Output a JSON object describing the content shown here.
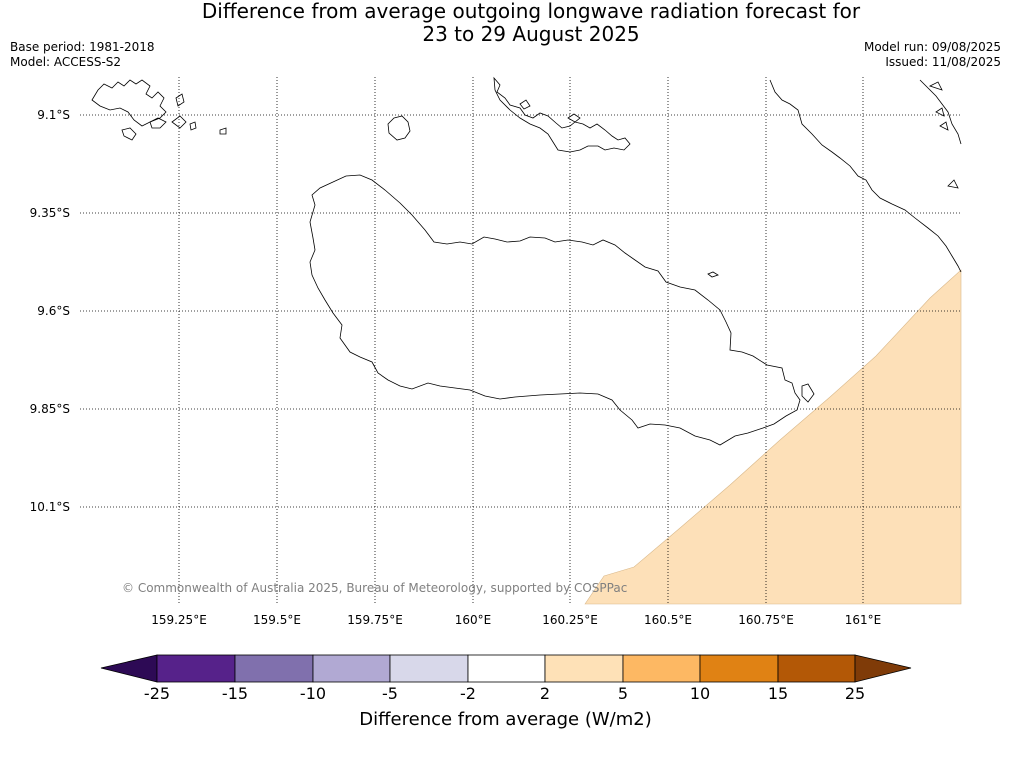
{
  "title": {
    "line1": "Difference from average outgoing longwave radiation forecast for",
    "line2": "23 to 29 August 2025"
  },
  "meta_left": {
    "base_period": "Base period: 1981-2018",
    "model": "Model: ACCESS-S2"
  },
  "meta_right": {
    "model_run": "Model run: 09/08/2025",
    "issued": "Issued: 11/08/2025"
  },
  "map": {
    "lat_labels": [
      "9.1°S",
      "9.35°S",
      "9.6°S",
      "9.85°S",
      "10.1°S"
    ],
    "lon_labels": [
      "159.25°E",
      "159.5°E",
      "159.75°E",
      "160°E",
      "160.25°E",
      "160.5°E",
      "160.75°E",
      "161°E"
    ],
    "anomaly_fill_color": "#fde0b8",
    "copyright": "© Commonwealth of Australia 2025, Bureau of Meteorology, supported by COSPPac"
  },
  "colorbar": {
    "ticks": [
      "-25",
      "-15",
      "-10",
      "-5",
      "-2",
      "2",
      "5",
      "10",
      "15",
      "25"
    ],
    "colors": [
      "#2d0a55",
      "#56228a",
      "#8070ad",
      "#b1a9d3",
      "#d8d8ea",
      "#ffffff",
      "#fee1b7",
      "#fdb863",
      "#e08214",
      "#b35806",
      "#7f3b08"
    ],
    "label": "Difference from average (W/m2)"
  }
}
